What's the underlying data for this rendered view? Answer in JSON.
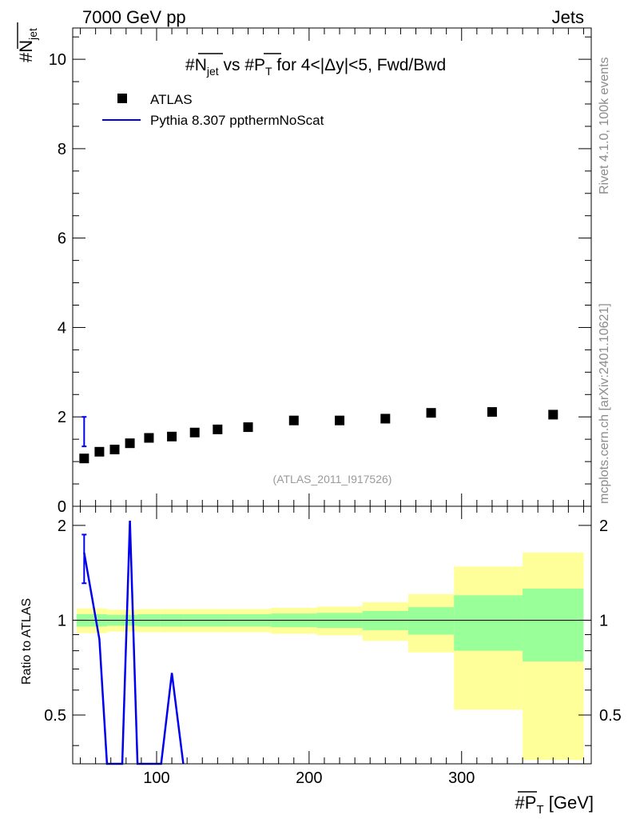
{
  "header": {
    "left": "7000 GeV pp",
    "right": "Jets"
  },
  "side_labels": {
    "rivet": "Rivet 4.1.0,  100k events",
    "mcplots": "mcplots.cern.ch [arXiv:2401.10621]"
  },
  "chart_data": [
    {
      "type": "scatter",
      "panel": "main",
      "title": "#N̅jet vs #P̅T for 4<|Δy|<5, Fwd/Bwd",
      "title_parts": {
        "p1": "#",
        "p2": "N",
        "p3": "jet",
        "p4": " vs #",
        "p5": "P",
        "p6": "T",
        "p7": " for 4<|Δy|<5, Fwd/Bwd"
      },
      "ylabel": {
        "hash": "#",
        "main": "N",
        "sub": "jet"
      },
      "xlim": [
        45,
        385
      ],
      "ylim": [
        0,
        10.7
      ],
      "y_ticks": [
        "0",
        "2",
        "4",
        "6",
        "8",
        "10"
      ],
      "y_tick_values": [
        0,
        2,
        4,
        6,
        8,
        10
      ],
      "watermark": "(ATLAS_2011_I917526)",
      "legend": [
        {
          "name": "ATLAS",
          "marker": "square",
          "color": "#000000"
        },
        {
          "name": "Pythia 8.307 ppthermNoScat",
          "marker": "line",
          "color": "#0000ee"
        }
      ],
      "series": [
        {
          "name": "ATLAS",
          "x": [
            52.5,
            62.5,
            72.5,
            82.5,
            95,
            110,
            125,
            140,
            160,
            190,
            220,
            250,
            280,
            320,
            360
          ],
          "y": [
            1.07,
            1.22,
            1.27,
            1.41,
            1.53,
            1.56,
            1.65,
            1.72,
            1.77,
            1.92,
            1.92,
            1.96,
            2.09,
            2.11,
            2.05
          ]
        },
        {
          "name": "Pythia 8.307 ppthermNoScat",
          "x": [
            52.5
          ],
          "y": [
            1.67
          ],
          "yerr_low": [
            1.34
          ],
          "yerr_high": [
            2.0
          ]
        }
      ]
    },
    {
      "type": "line",
      "panel": "ratio",
      "ylabel": "Ratio to ATLAS",
      "xlabel": {
        "hash": "#",
        "main": "P",
        "sub": "T",
        "unit": " [GeV]"
      },
      "xlim": [
        45,
        385
      ],
      "ylim": [
        0.35,
        2.3
      ],
      "x_ticks": [
        "100",
        "200",
        "300"
      ],
      "x_tick_values": [
        100,
        200,
        300
      ],
      "y_ticks": [
        "0.5",
        "1",
        "2"
      ],
      "y_tick_values": [
        0.5,
        1,
        2
      ],
      "bands": {
        "edges": [
          47.5,
          57.5,
          67.5,
          77.5,
          87.5,
          102.5,
          117.5,
          132.5,
          147.5,
          175,
          205,
          235,
          265,
          295,
          340,
          380
        ],
        "green_low": [
          0.955,
          0.955,
          0.96,
          0.96,
          0.955,
          0.955,
          0.955,
          0.955,
          0.955,
          0.95,
          0.945,
          0.93,
          0.9,
          0.8,
          0.74
        ],
        "green_high": [
          1.045,
          1.045,
          1.04,
          1.04,
          1.045,
          1.045,
          1.045,
          1.045,
          1.045,
          1.05,
          1.055,
          1.07,
          1.1,
          1.2,
          1.26
        ],
        "yellow_low": [
          0.91,
          0.91,
          0.92,
          0.92,
          0.915,
          0.915,
          0.915,
          0.915,
          0.915,
          0.905,
          0.895,
          0.86,
          0.79,
          0.52,
          0.36
        ],
        "yellow_high": [
          1.09,
          1.09,
          1.08,
          1.08,
          1.085,
          1.085,
          1.085,
          1.085,
          1.085,
          1.095,
          1.105,
          1.14,
          1.21,
          1.48,
          1.64
        ]
      },
      "series": [
        {
          "name": "Pythia 8.307 ppthermNoScat",
          "x": [
            52.5,
            62.5,
            67.5,
            72.5,
            77.5,
            82.5,
            87.5,
            97,
            103,
            110,
            117.5
          ],
          "y": [
            1.64,
            0.87,
            0.35,
            0.35,
            0.35,
            2.07,
            0.35,
            0.35,
            0.35,
            0.68,
            0.35
          ],
          "yerr_low": [
            1.31
          ],
          "yerr_high": [
            1.87
          ]
        }
      ],
      "reference_line": 1
    }
  ]
}
